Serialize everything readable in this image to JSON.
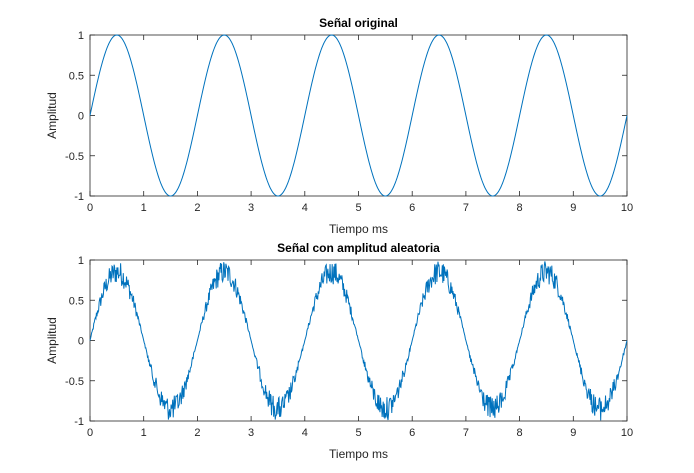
{
  "chart_data": [
    {
      "type": "line",
      "title": "Señal original",
      "xlabel": "Tiempo ms",
      "ylabel": "Amplitud",
      "xlim": [
        0,
        10
      ],
      "ylim": [
        -1,
        1
      ],
      "xticks": [
        "0",
        "1",
        "2",
        "3",
        "4",
        "5",
        "6",
        "7",
        "8",
        "9",
        "10"
      ],
      "yticks": [
        "-1",
        "-0.5",
        "0",
        "0.5",
        "1"
      ],
      "series": [
        {
          "function": "sin",
          "frequency_khz": 0.5,
          "amplitude": 1,
          "color": "#0072BD"
        }
      ],
      "grid": false
    },
    {
      "type": "line",
      "title": "Señal con amplitud aleatoria",
      "xlabel": "Tiempo ms",
      "ylabel": "Amplitud",
      "xlim": [
        0,
        10
      ],
      "ylim": [
        -1,
        1
      ],
      "xticks": [
        "0",
        "1",
        "2",
        "3",
        "4",
        "5",
        "6",
        "7",
        "8",
        "9",
        "10"
      ],
      "yticks": [
        "-1",
        "-0.5",
        "0",
        "0.5",
        "1"
      ],
      "series": [
        {
          "function": "sin*random",
          "frequency_khz": 0.5,
          "amplitude": 1,
          "random_amplitude_range": [
            0.7,
            1.0
          ],
          "color": "#0072BD"
        }
      ],
      "grid": false
    }
  ]
}
